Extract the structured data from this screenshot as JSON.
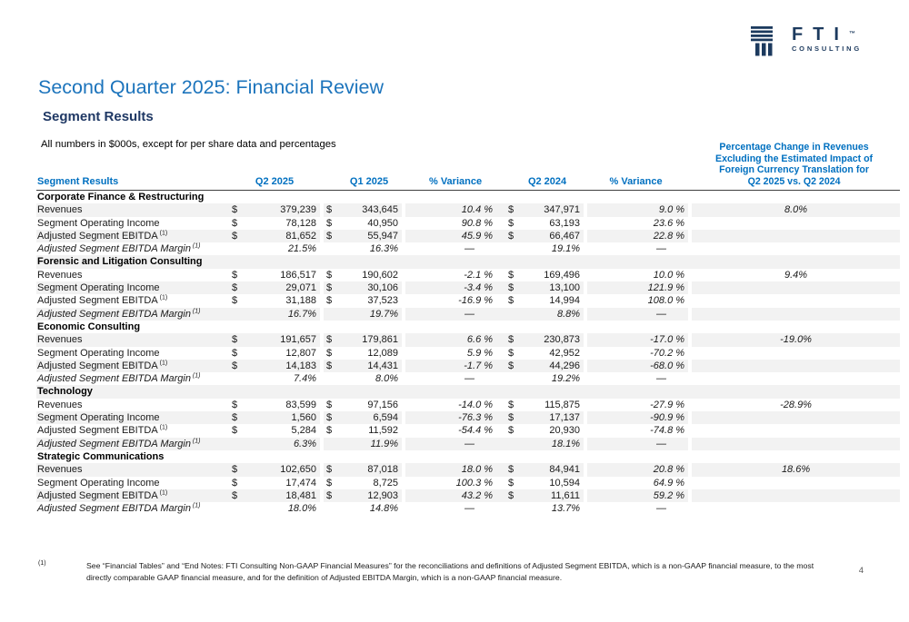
{
  "brand": {
    "name": "FTI",
    "tm": "™",
    "consulting": "CONSULTING"
  },
  "colors": {
    "title_blue": "#1c74bc",
    "subtitle_navy": "#1f3864",
    "table_header_blue": "#0070c0",
    "logo_navy": "#1c3a5e",
    "row_stripe": "#f2f2f2"
  },
  "header": {
    "title": "Second Quarter 2025: Financial Review",
    "subtitle": "Segment Results",
    "note": "All numbers in $000s, except for per share data and percentages"
  },
  "table": {
    "col_label": "Segment Results",
    "col_q2_2025": "Q2 2025",
    "col_q1_2025": "Q1 2025",
    "col_variance1": "% Variance",
    "col_q2_2024": "Q2 2024",
    "col_variance2": "% Variance",
    "fx_header": [
      "Percentage Change in Revenues",
      "Excluding the Estimated Impact of",
      "Foreign Currency Translation for",
      "Q2 2025 vs. Q2 2024"
    ],
    "sections": [
      {
        "name": "Corporate Finance & Restructuring",
        "rows": [
          {
            "label": "Revenues",
            "sup": "",
            "italic": false,
            "dollar": true,
            "q2_25": "379,239",
            "q1_25": "343,645",
            "var1": "10.4 %",
            "q2_24": "347,971",
            "var2": "9.0 %",
            "fx": "8.0%"
          },
          {
            "label": "Segment Operating Income",
            "sup": "",
            "italic": false,
            "dollar": true,
            "q2_25": "78,128",
            "q1_25": "40,950",
            "var1": "90.8 %",
            "q2_24": "63,193",
            "var2": "23.6 %",
            "fx": ""
          },
          {
            "label": "Adjusted Segment EBITDA",
            "sup": "(1)",
            "italic": false,
            "dollar": true,
            "q2_25": "81,652",
            "q1_25": "55,947",
            "var1": "45.9 %",
            "q2_24": "66,467",
            "var2": "22.8 %",
            "fx": ""
          },
          {
            "label": "Adjusted Segment EBITDA Margin",
            "sup": "(1)",
            "italic": true,
            "dollar": false,
            "q2_25": "21.5%",
            "q1_25": "16.3%",
            "var1": "—",
            "q2_24": "19.1%",
            "var2": "—",
            "fx": ""
          }
        ]
      },
      {
        "name": "Forensic and Litigation Consulting",
        "rows": [
          {
            "label": "Revenues",
            "sup": "",
            "italic": false,
            "dollar": true,
            "q2_25": "186,517",
            "q1_25": "190,602",
            "var1": "-2.1 %",
            "q2_24": "169,496",
            "var2": "10.0 %",
            "fx": "9.4%"
          },
          {
            "label": "Segment Operating Income",
            "sup": "",
            "italic": false,
            "dollar": true,
            "q2_25": "29,071",
            "q1_25": "30,106",
            "var1": "-3.4 %",
            "q2_24": "13,100",
            "var2": "121.9 %",
            "fx": ""
          },
          {
            "label": "Adjusted Segment EBITDA",
            "sup": "(1)",
            "italic": false,
            "dollar": true,
            "q2_25": "31,188",
            "q1_25": "37,523",
            "var1": "-16.9 %",
            "q2_24": "14,994",
            "var2": "108.0 %",
            "fx": ""
          },
          {
            "label": "Adjusted Segment EBITDA Margin",
            "sup": "(1)",
            "italic": true,
            "dollar": false,
            "q2_25": "16.7%",
            "q1_25": "19.7%",
            "var1": "—",
            "q2_24": "8.8%",
            "var2": "—",
            "fx": ""
          }
        ]
      },
      {
        "name": "Economic Consulting",
        "rows": [
          {
            "label": "Revenues",
            "sup": "",
            "italic": false,
            "dollar": true,
            "q2_25": "191,657",
            "q1_25": "179,861",
            "var1": "6.6 %",
            "q2_24": "230,873",
            "var2": "-17.0 %",
            "fx": "-19.0%"
          },
          {
            "label": "Segment Operating Income",
            "sup": "",
            "italic": false,
            "dollar": true,
            "q2_25": "12,807",
            "q1_25": "12,089",
            "var1": "5.9 %",
            "q2_24": "42,952",
            "var2": "-70.2 %",
            "fx": ""
          },
          {
            "label": "Adjusted Segment EBITDA",
            "sup": "(1)",
            "italic": false,
            "dollar": true,
            "q2_25": "14,183",
            "q1_25": "14,431",
            "var1": "-1.7 %",
            "q2_24": "44,296",
            "var2": "-68.0 %",
            "fx": ""
          },
          {
            "label": "Adjusted Segment EBITDA Margin",
            "sup": "(1)",
            "italic": true,
            "dollar": false,
            "q2_25": "7.4%",
            "q1_25": "8.0%",
            "var1": "—",
            "q2_24": "19.2%",
            "var2": "—",
            "fx": ""
          }
        ]
      },
      {
        "name": "Technology",
        "rows": [
          {
            "label": "Revenues",
            "sup": "",
            "italic": false,
            "dollar": true,
            "q2_25": "83,599",
            "q1_25": "97,156",
            "var1": "-14.0 %",
            "q2_24": "115,875",
            "var2": "-27.9 %",
            "fx": "-28.9%"
          },
          {
            "label": "Segment Operating Income",
            "sup": "",
            "italic": false,
            "dollar": true,
            "q2_25": "1,560",
            "q1_25": "6,594",
            "var1": "-76.3 %",
            "q2_24": "17,137",
            "var2": "-90.9 %",
            "fx": ""
          },
          {
            "label": "Adjusted Segment EBITDA",
            "sup": "(1)",
            "italic": false,
            "dollar": true,
            "q2_25": "5,284",
            "q1_25": "11,592",
            "var1": "-54.4 %",
            "q2_24": "20,930",
            "var2": "-74.8 %",
            "fx": ""
          },
          {
            "label": "Adjusted Segment EBITDA Margin",
            "sup": "(1)",
            "italic": true,
            "dollar": false,
            "q2_25": "6.3%",
            "q1_25": "11.9%",
            "var1": "—",
            "q2_24": "18.1%",
            "var2": "—",
            "fx": ""
          }
        ]
      },
      {
        "name": "Strategic Communications",
        "rows": [
          {
            "label": "Revenues",
            "sup": "",
            "italic": false,
            "dollar": true,
            "q2_25": "102,650",
            "q1_25": "87,018",
            "var1": "18.0 %",
            "q2_24": "84,941",
            "var2": "20.8 %",
            "fx": "18.6%"
          },
          {
            "label": "Segment Operating Income",
            "sup": "",
            "italic": false,
            "dollar": true,
            "q2_25": "17,474",
            "q1_25": "8,725",
            "var1": "100.3 %",
            "q2_24": "10,594",
            "var2": "64.9 %",
            "fx": ""
          },
          {
            "label": "Adjusted Segment EBITDA",
            "sup": "(1)",
            "italic": false,
            "dollar": true,
            "q2_25": "18,481",
            "q1_25": "12,903",
            "var1": "43.2 %",
            "q2_24": "11,611",
            "var2": "59.2 %",
            "fx": ""
          },
          {
            "label": "Adjusted Segment EBITDA Margin",
            "sup": "(1)",
            "italic": true,
            "dollar": false,
            "q2_25": "18.0%",
            "q1_25": "14.8%",
            "var1": "—",
            "q2_24": "13.7%",
            "var2": "—",
            "fx": ""
          }
        ]
      }
    ]
  },
  "footnote": {
    "marker": "(1)",
    "text": "See “Financial Tables” and “End Notes: FTI Consulting Non-GAAP Financial Measures” for the reconciliations and definitions of Adjusted Segment EBITDA, which is a non-GAAP financial measure, to the most directly comparable GAAP financial measure, and for the definition of Adjusted EBITDA Margin, which is a non-GAAP financial measure."
  },
  "page_number": "4"
}
